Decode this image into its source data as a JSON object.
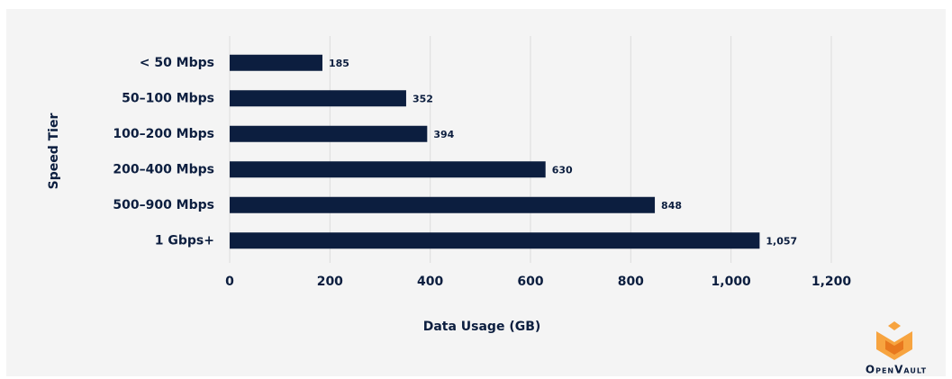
{
  "chart_data": {
    "type": "barh",
    "x_label": "Data Usage (GB)",
    "y_label": "Speed Tier",
    "categories": [
      "< 50 Mbps",
      "50–100 Mbps",
      "100–200 Mbps",
      "200–400 Mbps",
      "500–900 Mbps",
      "1 Gbps+"
    ],
    "values": [
      185,
      352,
      394,
      630,
      848,
      1057
    ],
    "value_labels": [
      "185",
      "352",
      "394",
      "630",
      "848",
      "1,057"
    ],
    "color": "#0c1e3f",
    "xlim": [
      0,
      1200
    ],
    "xticks": [
      0,
      200,
      400,
      600,
      800,
      {
        "value": 1000,
        "label": "1,000"
      },
      {
        "value": 1200,
        "label": "1,200"
      }
    ],
    "grid": true
  },
  "logo": "OpenVault"
}
